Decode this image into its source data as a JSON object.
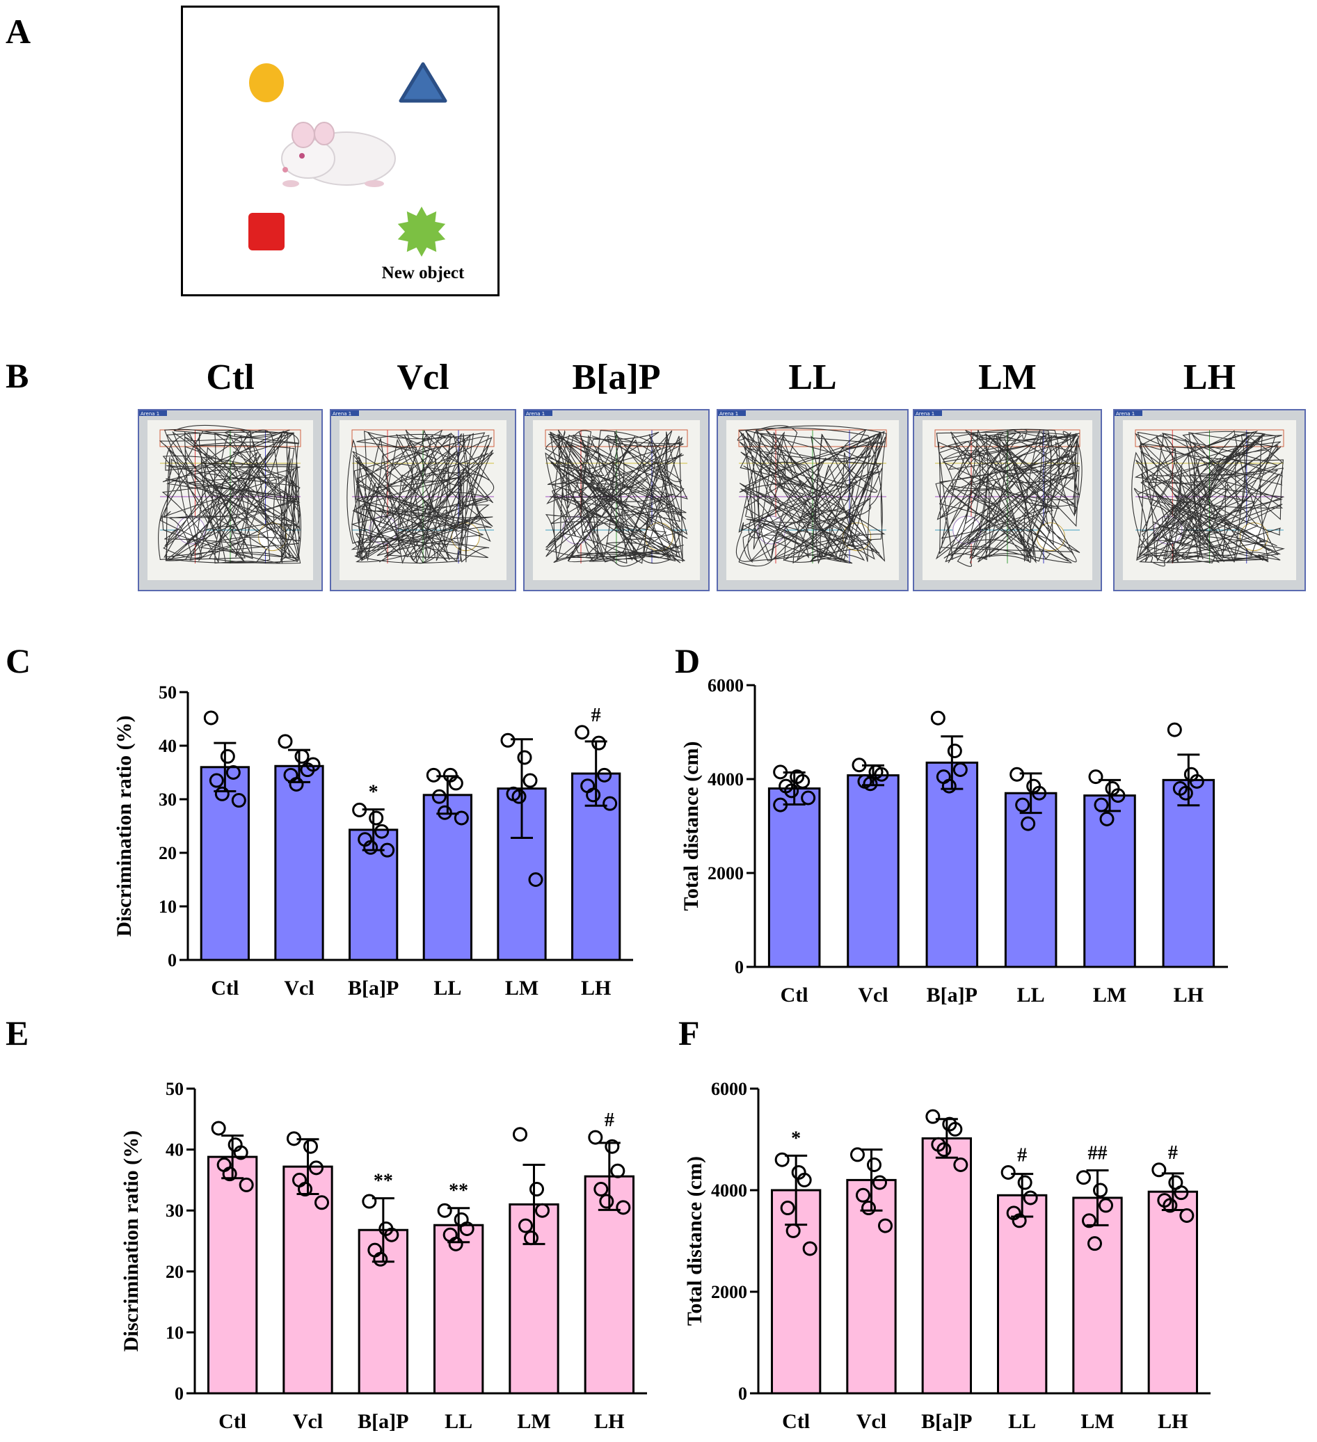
{
  "panels": {
    "a": "A",
    "b": "B",
    "c": "C",
    "d": "D",
    "e": "E",
    "f": "F"
  },
  "panel_a": {
    "new_object_label": "New object",
    "colors": {
      "circle": "#f5b820",
      "triangle": "#3f6fb0",
      "triangle_edge": "#2b4f86",
      "square": "#e02020",
      "star": "#7cc043"
    },
    "icons": [
      "circle-object-icon",
      "triangle-object-icon",
      "mouse-icon",
      "square-object-icon",
      "star-object-icon"
    ]
  },
  "panel_b": {
    "groups": [
      "Ctl",
      "Vcl",
      "B[a]P",
      "LL",
      "LM",
      "LH"
    ],
    "arena_tag": "Arena 1"
  },
  "colors": {
    "blue_bar": "#8080ff",
    "pink_bar": "#ffbde0"
  },
  "chart_data": [
    {
      "panel": "C",
      "type": "bar",
      "categories": [
        "Ctl",
        "Vcl",
        "B[a]P",
        "LL",
        "LM",
        "LH"
      ],
      "values": [
        36,
        36.2,
        24.3,
        30.8,
        32,
        34.8
      ],
      "errors": [
        4.5,
        3.0,
        3.8,
        3.5,
        9.2,
        6.0
      ],
      "points": [
        [
          45.2,
          38,
          35,
          33.5,
          31,
          29.8
        ],
        [
          40.8,
          38,
          35.5,
          34.5,
          32.8,
          36.5
        ],
        [
          28,
          26.5,
          24,
          22.5,
          21,
          20.5
        ],
        [
          34.5,
          34.5,
          33,
          30.5,
          27.5,
          26.5
        ],
        [
          41,
          37.8,
          33.5,
          31,
          30.5,
          15
        ],
        [
          42.5,
          40.5,
          34.5,
          32.5,
          30.8,
          29.2
        ]
      ],
      "annotations": [
        "",
        "",
        "*",
        "",
        "",
        "#"
      ],
      "ylabel": "Discrimination ratio (%)",
      "ylim": [
        0,
        50
      ],
      "yticks": [
        0,
        10,
        20,
        30,
        40,
        50
      ],
      "ytick_labels": [
        "0",
        "10",
        "20",
        "30",
        "40",
        "50"
      ],
      "bar_color": "blue"
    },
    {
      "panel": "D",
      "type": "bar",
      "categories": [
        "Ctl",
        "Vcl",
        "B[a]P",
        "LL",
        "LM",
        "LH"
      ],
      "values": [
        3800,
        4080,
        4350,
        3700,
        3650,
        3980
      ],
      "errors": [
        340,
        210,
        560,
        420,
        330,
        540
      ],
      "points": [
        [
          4150,
          4050,
          3950,
          3850,
          3750,
          3600,
          3450
        ],
        [
          4300,
          4150,
          4100,
          3950,
          3900
        ],
        [
          5300,
          4600,
          4200,
          4050,
          3850
        ],
        [
          4100,
          3850,
          3700,
          3450,
          3050
        ],
        [
          4050,
          3800,
          3650,
          3450,
          3150
        ],
        [
          5050,
          4100,
          3950,
          3800,
          3700
        ]
      ],
      "annotations": [
        "",
        "",
        "",
        "",
        "",
        ""
      ],
      "ylabel": "Total distance (cm)",
      "ylim": [
        0,
        6000
      ],
      "yticks": [
        0,
        2000,
        4000,
        6000
      ],
      "ytick_labels": [
        "0",
        "2000",
        "4000",
        "6000"
      ],
      "bar_color": "blue"
    },
    {
      "panel": "E",
      "type": "bar",
      "categories": [
        "Ctl",
        "Vcl",
        "B[a]P",
        "LL",
        "LM",
        "LH"
      ],
      "values": [
        38.8,
        37.2,
        26.8,
        27.6,
        31,
        35.6
      ],
      "errors": [
        3.5,
        4.5,
        5.2,
        2.8,
        6.5,
        5.5
      ],
      "points": [
        [
          43.5,
          40.8,
          39.5,
          37.5,
          36,
          34.2
        ],
        [
          41.8,
          40.5,
          37,
          35,
          33.5,
          31.3
        ],
        [
          31.5,
          27,
          26,
          23.5,
          22
        ],
        [
          30,
          28.5,
          27,
          26,
          24.5
        ],
        [
          42.5,
          33.5,
          30,
          27.5,
          25.5
        ],
        [
          42,
          40.5,
          36.5,
          33.5,
          31.5,
          30.5
        ]
      ],
      "annotations": [
        "",
        "",
        "**",
        "**",
        "",
        "#"
      ],
      "ylabel": "Discrimination ratio (%)",
      "ylim": [
        0,
        50
      ],
      "yticks": [
        0,
        10,
        20,
        30,
        40,
        50
      ],
      "ytick_labels": [
        "0",
        "10",
        "20",
        "30",
        "40",
        "50"
      ],
      "bar_color": "pink"
    },
    {
      "panel": "F",
      "type": "bar",
      "categories": [
        "Ctl",
        "Vcl",
        "B[a]P",
        "LL",
        "LM",
        "LH"
      ],
      "values": [
        4000,
        4200,
        5020,
        3900,
        3850,
        3970
      ],
      "errors": [
        680,
        600,
        380,
        420,
        540,
        360
      ],
      "points": [
        [
          4600,
          4350,
          4200,
          3650,
          3200,
          2850
        ],
        [
          4700,
          4500,
          4150,
          3900,
          3650,
          3300
        ],
        [
          5450,
          5300,
          5200,
          4900,
          4800,
          4500
        ],
        [
          4350,
          4150,
          3850,
          3550,
          3400
        ],
        [
          4250,
          4000,
          3700,
          3400,
          2950
        ],
        [
          4400,
          4150,
          3950,
          3800,
          3700,
          3500
        ]
      ],
      "annotations": [
        "*",
        "",
        "",
        "#",
        "##",
        "#"
      ],
      "ylabel": "Total distance (cm)",
      "ylim": [
        0,
        6000
      ],
      "yticks": [
        0,
        2000,
        4000,
        6000
      ],
      "ytick_labels": [
        "0",
        "2000",
        "4000",
        "6000"
      ],
      "bar_color": "pink"
    }
  ]
}
